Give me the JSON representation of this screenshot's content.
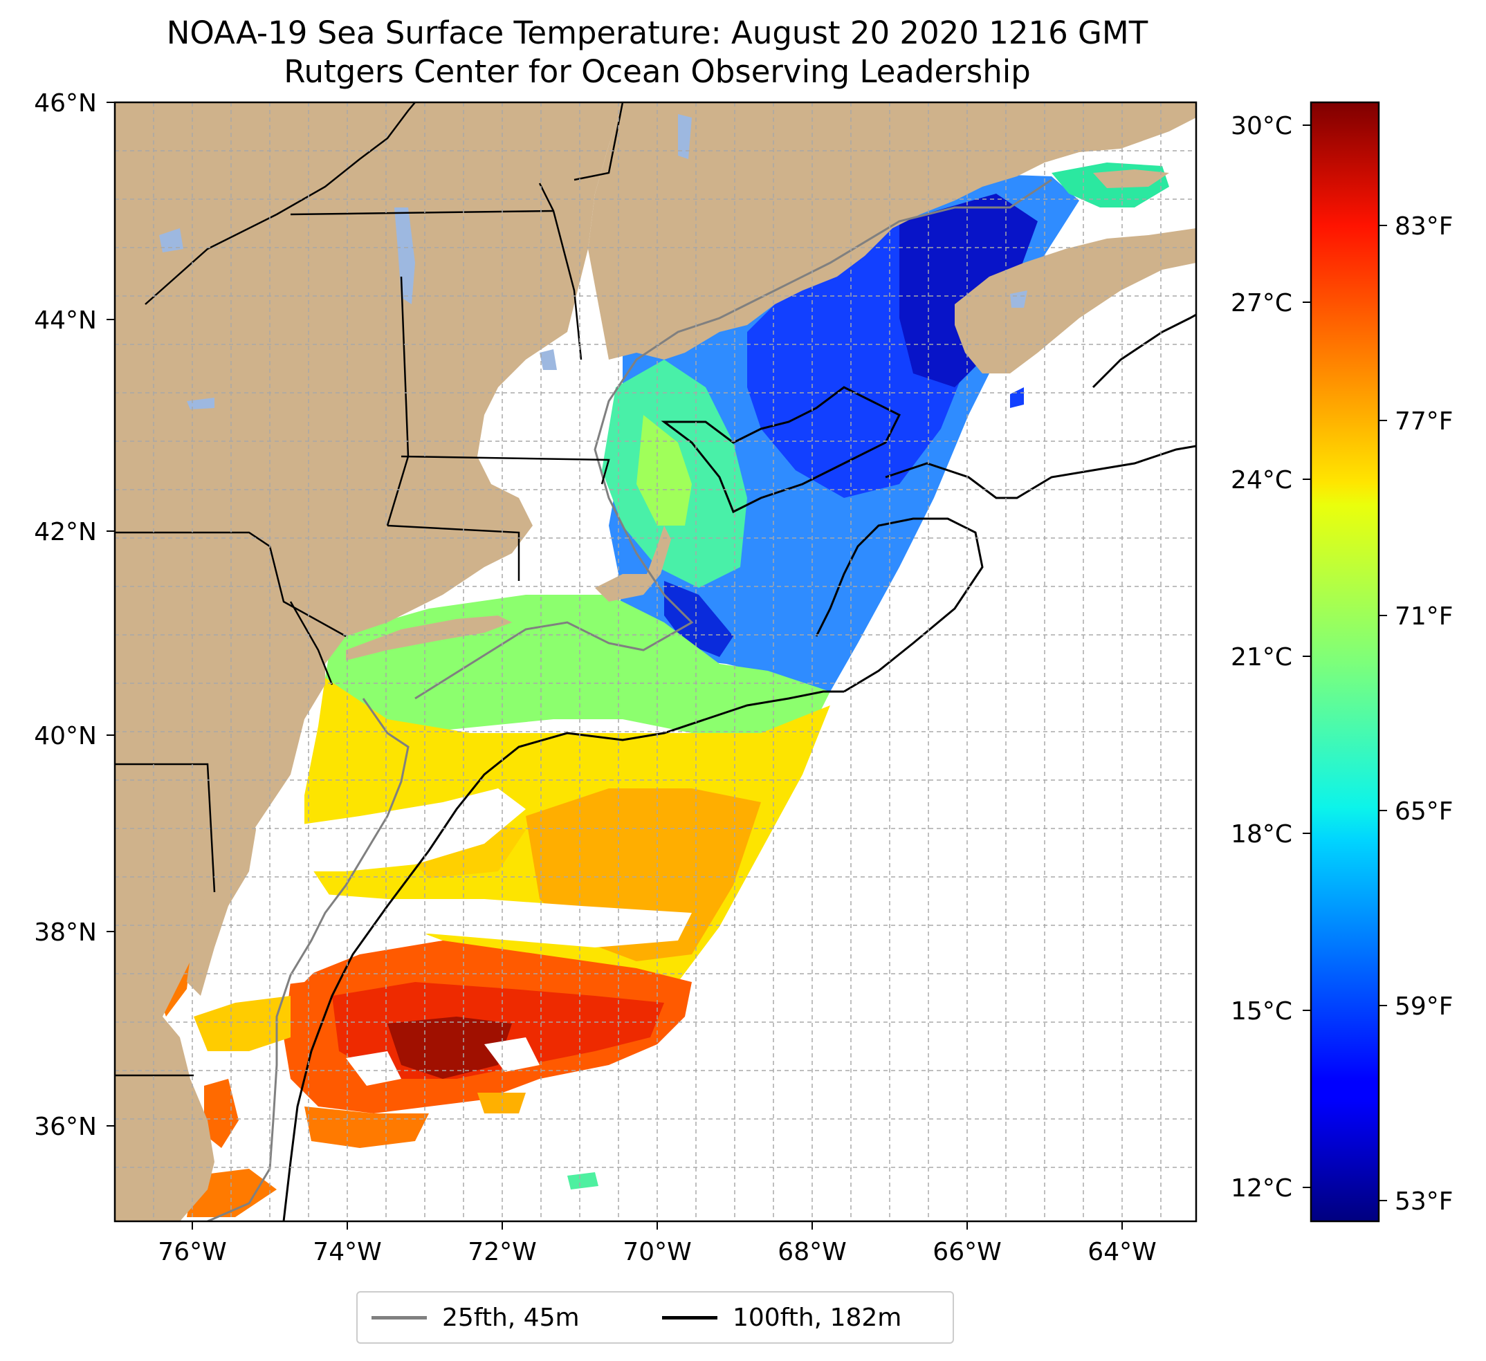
{
  "title": {
    "line1": "NOAA-19 Sea Surface Temperature: August 20 2020 1216 GMT",
    "line2": "Rutgers Center for Ocean Observing Leadership"
  },
  "map": {
    "lon_range": [
      -77,
      -63
    ],
    "lat_range": [
      35,
      46
    ],
    "x_ticks": [
      "76°W",
      "74°W",
      "72°W",
      "70°W",
      "68°W",
      "66°W",
      "64°W"
    ],
    "y_ticks": [
      "46°N",
      "44°N",
      "42°N",
      "40°N",
      "38°N",
      "36°N"
    ],
    "colors": {
      "land": "#cfb28b",
      "lakes": "#9db8e0",
      "grid": "#a8a8a8"
    }
  },
  "colorbar": {
    "colormap": "jet",
    "celsius_ticks": [
      "30°C",
      "27°C",
      "24°C",
      "21°C",
      "18°C",
      "15°C",
      "12°C"
    ],
    "fahrenheit_ticks": [
      "83°F",
      "77°F",
      "71°F",
      "65°F",
      "59°F",
      "53°F"
    ]
  },
  "legend": {
    "items": [
      {
        "label": "25fth, 45m",
        "color": "#808080"
      },
      {
        "label": "100fth, 182m",
        "color": "#000000"
      }
    ]
  }
}
